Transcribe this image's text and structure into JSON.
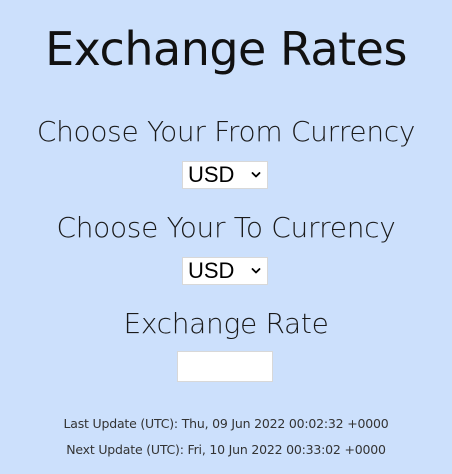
{
  "page": {
    "title": "Exchange Rates"
  },
  "from_currency": {
    "label": "Choose Your From Currency",
    "selected": "USD"
  },
  "to_currency": {
    "label": "Choose Your To Currency",
    "selected": "USD"
  },
  "exchange_rate": {
    "label": "Exchange Rate",
    "value": ""
  },
  "updates": {
    "last": "Last Update (UTC): Thu, 09 Jun 2022 00:02:32 +0000",
    "next": "Next Update (UTC): Fri, 10 Jun 2022 00:33:02 +0000"
  },
  "colors": {
    "background": "#cce0fc",
    "control_background": "#ffffff",
    "text": "#111111"
  },
  "icons": {
    "dropdown": "chevron-down-icon"
  }
}
